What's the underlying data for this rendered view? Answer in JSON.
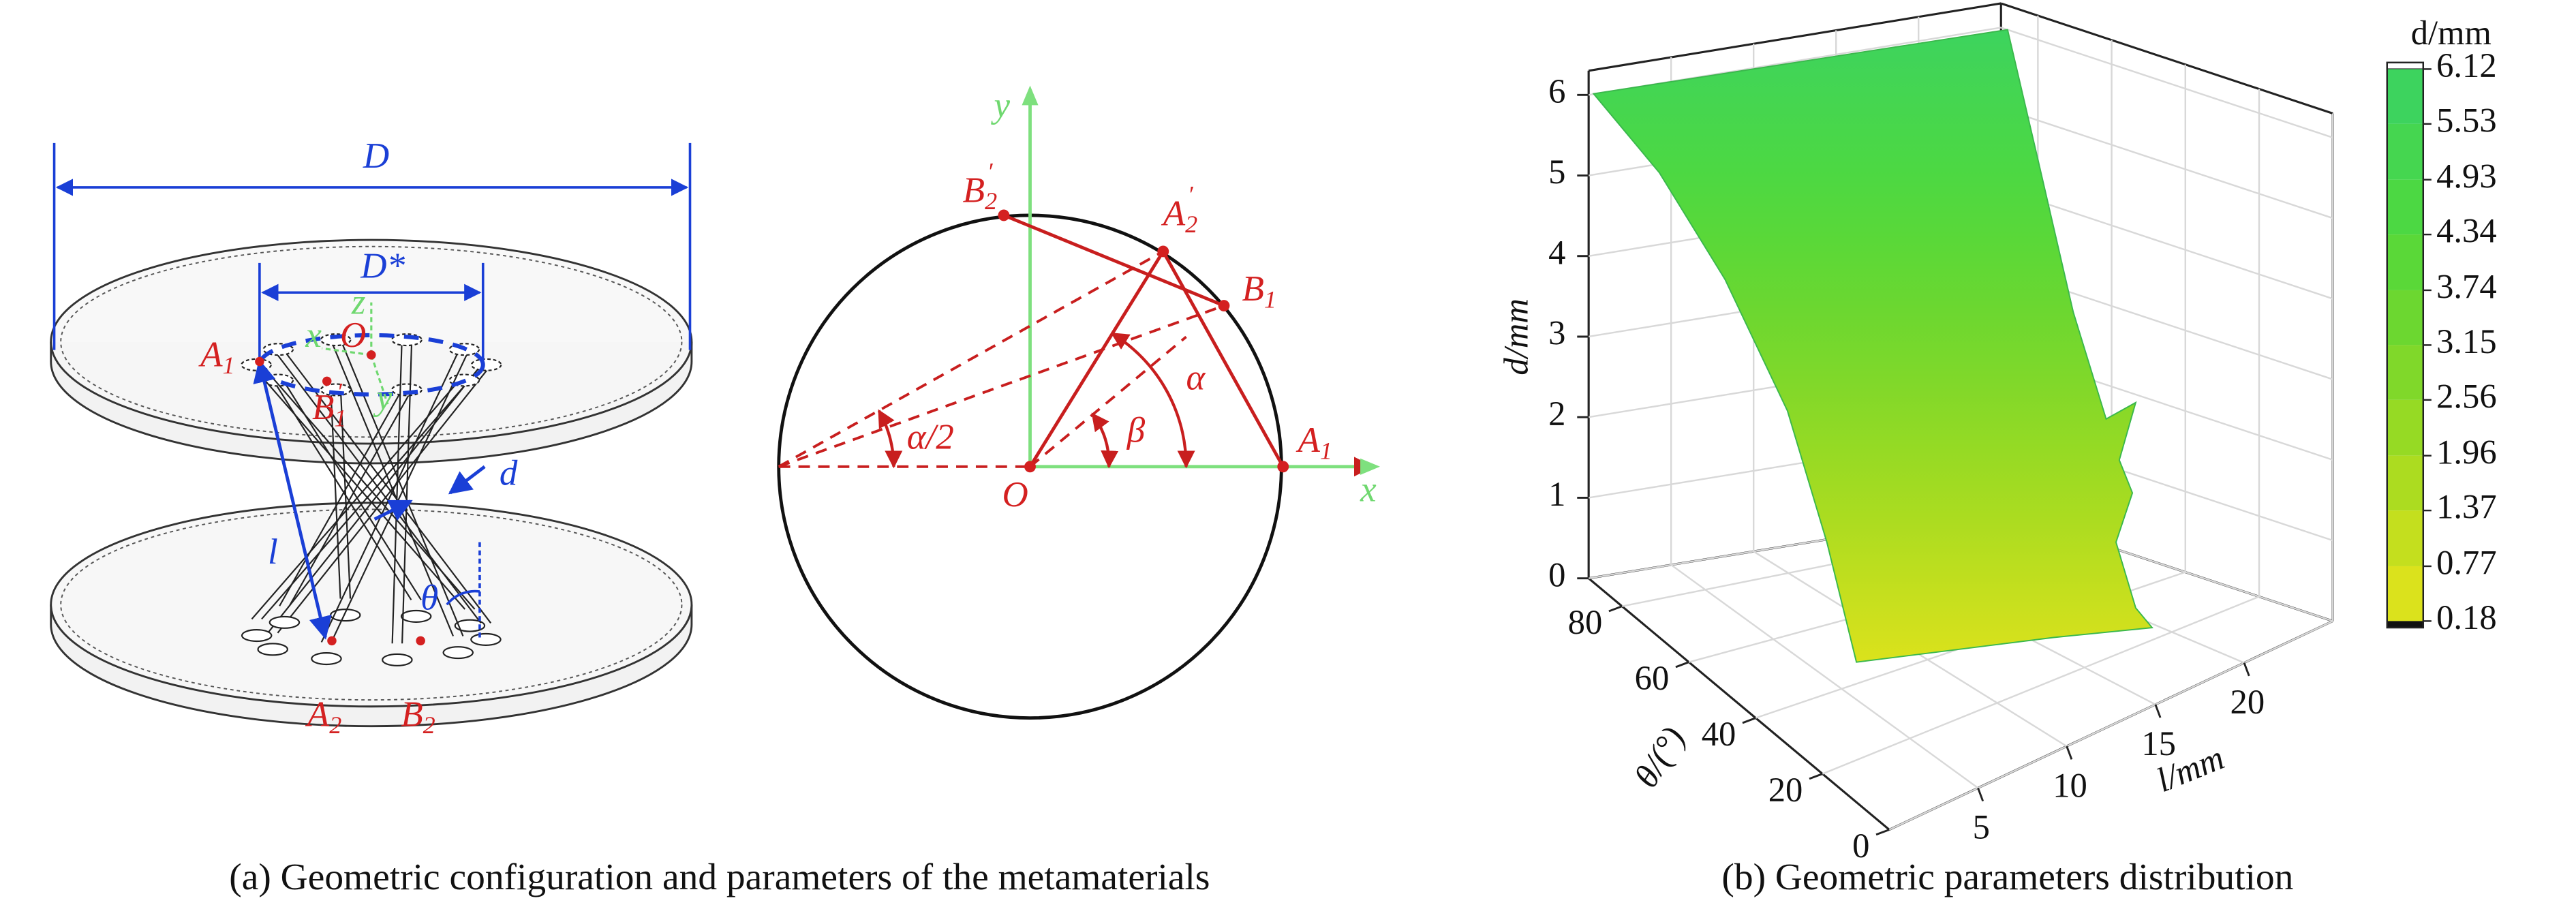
{
  "panel_a": {
    "caption": "(a) Geometric configuration and parameters of the metamaterials",
    "structure_labels": {
      "D": "D",
      "D_star": "D*",
      "A1": {
        "letter": "A",
        "sub": "1"
      },
      "O": "O",
      "x": "x",
      "y": "y",
      "z": "z",
      "B1p": {
        "letter": "B",
        "sub": "1",
        "prime": "′"
      },
      "d": "d",
      "l": "l",
      "theta": "θ",
      "A2": {
        "letter": "A",
        "sub": "2"
      },
      "B2": {
        "letter": "B",
        "sub": "2"
      }
    },
    "circle_labels": {
      "y": "y",
      "x": "x",
      "O": "O",
      "B2p": {
        "letter": "B",
        "sub": "2",
        "prime": "′"
      },
      "A2p": {
        "letter": "A",
        "sub": "2",
        "prime": "′"
      },
      "B1": {
        "letter": "B",
        "sub": "1"
      },
      "A1": {
        "letter": "A",
        "sub": "1"
      },
      "half_alpha": "α/2",
      "alpha": "α",
      "beta": "β"
    }
  },
  "chart_data": {
    "type": "surface3d",
    "caption": "(b) Geometric parameters distribution",
    "xlabel": "l/mm",
    "ylabel": "θ/(°)",
    "zlabel": "d/mm",
    "xlim": [
      0,
      25
    ],
    "xticks": [
      5,
      10,
      15,
      20
    ],
    "ylim": [
      0,
      90
    ],
    "yticks": [
      0,
      20,
      40,
      60,
      80
    ],
    "zlim": [
      0,
      6.3
    ],
    "zticks": [
      0,
      1,
      2,
      3,
      4,
      5,
      6
    ],
    "grid": true,
    "colorbar": {
      "title": "d/mm",
      "ticks": [
        6.12,
        5.53,
        4.93,
        4.34,
        3.74,
        3.15,
        2.56,
        1.96,
        1.37,
        0.77,
        0.18
      ],
      "colors": [
        "#3dd35e",
        "#45d650",
        "#4cd843",
        "#5ad838",
        "#6cd730",
        "#80d82a",
        "#96da24",
        "#acdc20",
        "#c4df1e",
        "#dbe21c"
      ]
    }
  }
}
